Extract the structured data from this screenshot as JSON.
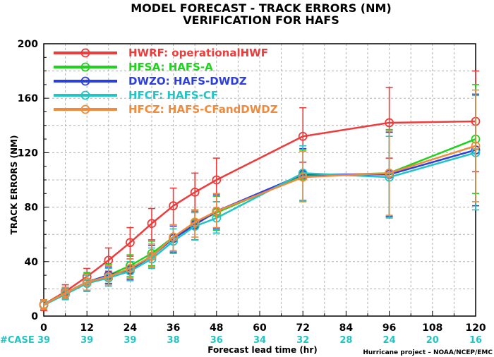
{
  "chart_data": {
    "type": "line",
    "title": "MODEL FORECAST - TRACK ERRORS (NM)",
    "subtitle": "VERIFICATION FOR HAFS",
    "xlabel": "Forecast lead time (hr)",
    "ylabel": "TRACK ERRORS (NM)",
    "xlim": [
      0,
      120
    ],
    "ylim": [
      0,
      200
    ],
    "x_ticks": [
      0,
      12,
      24,
      36,
      48,
      60,
      72,
      84,
      96,
      108,
      120
    ],
    "y_ticks": [
      0,
      40,
      80,
      120,
      160,
      200
    ],
    "grid": true,
    "legend_position": "top-left",
    "case_label": "#CASE",
    "case_counts": [
      {
        "x": 0,
        "n": "39"
      },
      {
        "x": 12,
        "n": "39"
      },
      {
        "x": 24,
        "n": "39"
      },
      {
        "x": 36,
        "n": "38"
      },
      {
        "x": 48,
        "n": "36"
      },
      {
        "x": 60,
        "n": "34"
      },
      {
        "x": 72,
        "n": "32"
      },
      {
        "x": 84,
        "n": "28"
      },
      {
        "x": 96,
        "n": "24"
      },
      {
        "x": 108,
        "n": "20"
      },
      {
        "x": 120,
        "n": "16"
      }
    ],
    "credit": "Hurricane project – NOAA/NCEP/EMC",
    "series": [
      {
        "name": "HWRF: operationalHWF",
        "color": "#ee3b3b",
        "x": [
          0,
          6,
          12,
          18,
          24,
          30,
          36,
          42,
          48,
          72,
          96,
          120
        ],
        "values": [
          8.5,
          18,
          29,
          41,
          54,
          68,
          81,
          91,
          100,
          132,
          142,
          143
        ],
        "err_low": [
          4,
          13,
          23,
          33,
          44,
          56,
          67,
          77,
          84,
          113,
          116,
          106
        ],
        "err_high": [
          12,
          23,
          35,
          50,
          65,
          79,
          94,
          105,
          116,
          153,
          168,
          180
        ]
      },
      {
        "name": "HFSA: HAFS-A",
        "color": "#1ed21e",
        "x": [
          0,
          6,
          12,
          18,
          24,
          30,
          36,
          42,
          48,
          72,
          96,
          120
        ],
        "values": [
          8.5,
          17,
          25,
          30,
          37,
          46,
          58,
          68,
          76,
          103,
          105,
          130
        ],
        "err_low": [
          5,
          13,
          19,
          24,
          29,
          37,
          47,
          56,
          63,
          84,
          73,
          90
        ],
        "err_high": [
          12,
          21,
          32,
          38,
          45,
          55,
          67,
          78,
          88,
          122,
          137,
          170
        ]
      },
      {
        "name": "DWZO: HAFS-DWDZ",
        "color": "#2b3fe0",
        "x": [
          0,
          6,
          12,
          18,
          24,
          30,
          36,
          42,
          48,
          72,
          96,
          120
        ],
        "values": [
          8.5,
          17,
          25,
          30,
          34,
          44,
          57,
          67,
          77,
          104,
          104,
          122
        ],
        "err_low": [
          5,
          13,
          19,
          24,
          27,
          36,
          47,
          56,
          64,
          85,
          73,
          81
        ],
        "err_high": [
          12,
          21,
          31,
          36,
          42,
          52,
          66,
          76,
          89,
          123,
          135,
          163
        ]
      },
      {
        "name": "HFCF: HAFS-CF",
        "color": "#22c4c4",
        "x": [
          0,
          6,
          12,
          18,
          24,
          30,
          36,
          42,
          48,
          72,
          96,
          120
        ],
        "values": [
          8,
          16,
          24,
          28,
          33,
          42,
          55,
          66,
          72,
          105,
          102,
          120
        ],
        "err_low": [
          5,
          12,
          18,
          22,
          26,
          35,
          46,
          56,
          61,
          85,
          72,
          78
        ],
        "err_high": [
          11,
          20,
          30,
          35,
          40,
          50,
          64,
          76,
          84,
          125,
          132,
          162
        ]
      },
      {
        "name": "HFCZ: HAFS-CFandDWDZ",
        "color": "#f08a3c",
        "x": [
          0,
          6,
          12,
          18,
          24,
          30,
          36,
          42,
          48,
          72,
          96,
          120
        ],
        "values": [
          8.5,
          17,
          25,
          29,
          35,
          44,
          58,
          69,
          77,
          102,
          105,
          125
        ],
        "err_low": [
          5,
          13,
          19,
          23,
          28,
          36,
          48,
          58,
          65,
          84,
          74,
          84
        ],
        "err_high": [
          12,
          21,
          31,
          37,
          42,
          53,
          67,
          78,
          90,
          121,
          136,
          166
        ]
      }
    ]
  }
}
